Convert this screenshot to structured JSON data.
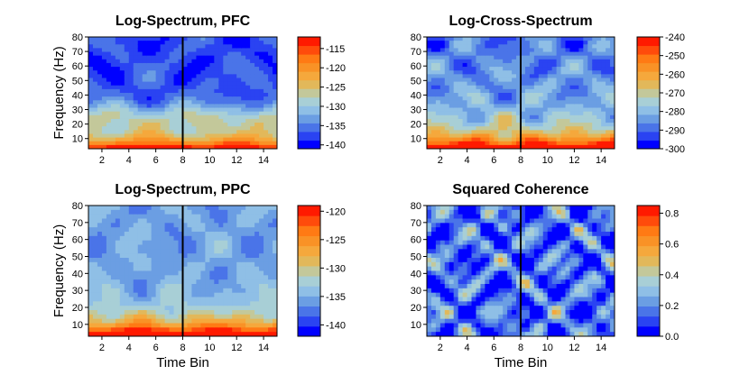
{
  "chart_data": [
    {
      "type": "heatmap",
      "title": "Log-Spectrum, PFC",
      "ylabel": "Frequency (Hz)",
      "xlabel": "",
      "xticks": [
        "2",
        "4",
        "6",
        "8",
        "10",
        "12",
        "14"
      ],
      "yticks": [
        "10",
        "20",
        "30",
        "40",
        "50",
        "60",
        "70",
        "80"
      ],
      "xlim": [
        1,
        15
      ],
      "ylim": [
        3,
        80
      ],
      "vline": 8,
      "colorbar": {
        "range": [
          -141,
          -112
        ],
        "ticks": [
          "-115",
          "-120",
          "-125",
          "-130",
          "-135",
          "-140"
        ],
        "tick_values": [
          -115,
          -120,
          -125,
          -130,
          -135,
          -140
        ]
      },
      "description_values": "high values (around -115) at frequencies below 10 Hz, decreasing to about -130 to -140 above 40 Hz",
      "grid": false
    },
    {
      "type": "heatmap",
      "title": "Log-Cross-Spectrum",
      "ylabel": "",
      "xlabel": "",
      "xticks": [
        "2",
        "4",
        "6",
        "8",
        "10",
        "12",
        "14"
      ],
      "yticks": [
        "10",
        "20",
        "30",
        "40",
        "50",
        "60",
        "70",
        "80"
      ],
      "xlim": [
        1,
        15
      ],
      "ylim": [
        3,
        80
      ],
      "vline": 8,
      "colorbar": {
        "range": [
          -300,
          -240
        ],
        "ticks": [
          "-240",
          "-250",
          "-260",
          "-270",
          "-280",
          "-290",
          "-300"
        ],
        "tick_values": [
          -240,
          -250,
          -260,
          -270,
          -280,
          -290,
          -300
        ]
      },
      "grid": false
    },
    {
      "type": "heatmap",
      "title": "Log-Spectrum, PPC",
      "ylabel": "Frequency (Hz)",
      "xlabel": "Time Bin",
      "xticks": [
        "2",
        "4",
        "6",
        "8",
        "10",
        "12",
        "14"
      ],
      "yticks": [
        "10",
        "20",
        "30",
        "40",
        "50",
        "60",
        "70",
        "80"
      ],
      "xlim": [
        1,
        15
      ],
      "ylim": [
        3,
        80
      ],
      "vline": 8,
      "colorbar": {
        "range": [
          -142,
          -119
        ],
        "ticks": [
          "-120",
          "-125",
          "-130",
          "-135",
          "-140"
        ],
        "tick_values": [
          -120,
          -125,
          -130,
          -135,
          -140
        ]
      },
      "grid": false
    },
    {
      "type": "heatmap",
      "title": "Squared Coherence",
      "ylabel": "",
      "xlabel": "Time Bin",
      "xticks": [
        "2",
        "4",
        "6",
        "8",
        "10",
        "12",
        "14"
      ],
      "yticks": [
        "10",
        "20",
        "30",
        "40",
        "50",
        "60",
        "70",
        "80"
      ],
      "xlim": [
        1,
        15
      ],
      "ylim": [
        3,
        80
      ],
      "vline": 8,
      "colorbar": {
        "range": [
          0,
          0.85
        ],
        "ticks": [
          "0.0",
          "0.2",
          "0.4",
          "0.6",
          "0.8"
        ],
        "tick_values": [
          0,
          0.2,
          0.4,
          0.6,
          0.8
        ]
      },
      "grid": false
    }
  ],
  "colors": {
    "palette": [
      "#0000ff",
      "#2a43f2",
      "#4a74e8",
      "#6b9ee3",
      "#8fbfe6",
      "#a8cfd6",
      "#c3c89a",
      "#e2b85a",
      "#f5a83c",
      "#f99226",
      "#ff7a14",
      "#ff4b0b",
      "#ff1a00"
    ],
    "vline": "#000000"
  }
}
